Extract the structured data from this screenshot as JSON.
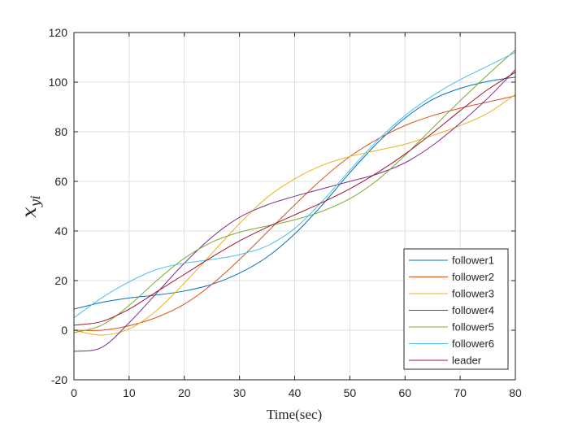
{
  "chart_data": {
    "type": "line",
    "title": "",
    "xlabel": "Time(sec)",
    "ylabel": {
      "base": "x",
      "subscript": "yi"
    },
    "xlim": [
      0,
      80
    ],
    "ylim": [
      -20,
      120
    ],
    "xticks": [
      0,
      10,
      20,
      30,
      40,
      50,
      60,
      70,
      80
    ],
    "yticks": [
      -20,
      0,
      20,
      40,
      60,
      80,
      100,
      120
    ],
    "xtick_labels": [
      "0",
      "10",
      "20",
      "30",
      "40",
      "50",
      "60",
      "70",
      "80"
    ],
    "ytick_labels": [
      "-20",
      "0",
      "20",
      "40",
      "60",
      "80",
      "100",
      "120"
    ],
    "grid": true,
    "legend_position": "bottom-right",
    "x": [
      0,
      5,
      10,
      15,
      20,
      25,
      30,
      35,
      40,
      45,
      50,
      55,
      60,
      65,
      70,
      75,
      80
    ],
    "series": [
      {
        "name": "follower1",
        "color": "#0072BD",
        "values": [
          8.5,
          11.2,
          13.0,
          14.2,
          15.8,
          18.5,
          23.0,
          29.5,
          38.8,
          50.5,
          63.5,
          75.5,
          85.5,
          93.0,
          97.5,
          100.3,
          102.0
        ]
      },
      {
        "name": "follower2",
        "color": "#D95319",
        "values": [
          0.0,
          0.0,
          1.8,
          5.2,
          10.5,
          18.5,
          28.5,
          39.5,
          50.5,
          61.0,
          70.0,
          77.0,
          82.5,
          86.5,
          89.5,
          92.0,
          94.5
        ]
      },
      {
        "name": "follower3",
        "color": "#EDB120",
        "values": [
          0.0,
          -2.0,
          0.5,
          8.0,
          19.0,
          31.0,
          43.0,
          53.5,
          61.0,
          66.5,
          70.0,
          72.5,
          75.0,
          78.5,
          82.5,
          87.5,
          95.0
        ]
      },
      {
        "name": "follower4",
        "color": "#7E2F8E",
        "values": [
          -8.5,
          -7.0,
          3.0,
          15.0,
          27.0,
          37.5,
          45.5,
          50.5,
          54.0,
          57.0,
          60.0,
          63.0,
          67.5,
          74.5,
          83.5,
          93.5,
          105.0
        ]
      },
      {
        "name": "follower5",
        "color": "#77AC30",
        "values": [
          -1.0,
          2.0,
          10.0,
          20.0,
          29.0,
          35.5,
          39.5,
          42.0,
          44.5,
          48.0,
          53.0,
          60.5,
          70.5,
          81.5,
          92.5,
          103.0,
          113.0
        ]
      },
      {
        "name": "follower6",
        "color": "#4DBEEE",
        "values": [
          5.0,
          13.0,
          19.5,
          24.5,
          27.0,
          28.5,
          30.5,
          34.0,
          41.0,
          52.0,
          64.5,
          76.5,
          86.5,
          94.5,
          101.0,
          106.5,
          112.0
        ]
      },
      {
        "name": "leader",
        "color": "#A2142F",
        "values": [
          2.0,
          3.5,
          8.5,
          15.5,
          22.5,
          29.5,
          36.0,
          41.5,
          46.5,
          51.5,
          57.0,
          63.5,
          71.0,
          79.5,
          88.5,
          97.0,
          104.0
        ]
      }
    ]
  }
}
